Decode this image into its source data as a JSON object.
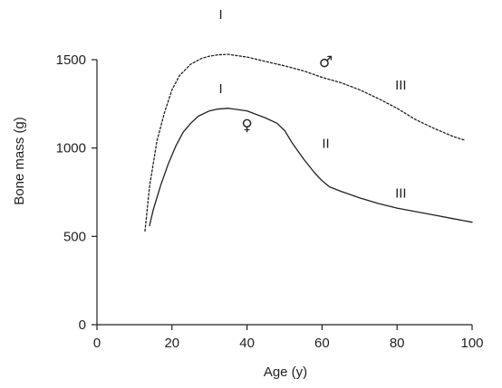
{
  "chart_data": {
    "type": "line",
    "xlabel": "Age (y)",
    "ylabel": "Bone mass (g)",
    "xlim": [
      0,
      100
    ],
    "ylim": [
      0,
      1500
    ],
    "xticks": [
      "0",
      "20",
      "40",
      "60",
      "80",
      "100"
    ],
    "yticks": [
      "0",
      "500",
      "1000",
      "1500"
    ],
    "grid": false,
    "series": [
      {
        "name": "♂",
        "style": "dotted",
        "color": "#231f20",
        "x": [
          12.8,
          14,
          16,
          18,
          20,
          22,
          25,
          28,
          30,
          32,
          35,
          40,
          45,
          50,
          55,
          60,
          65,
          70,
          75,
          80,
          85,
          90,
          95,
          98
        ],
        "y": [
          530,
          780,
          1040,
          1200,
          1330,
          1410,
          1475,
          1508,
          1520,
          1527,
          1530,
          1515,
          1490,
          1465,
          1437,
          1400,
          1370,
          1330,
          1280,
          1225,
          1160,
          1110,
          1065,
          1045
        ]
      },
      {
        "name": "♀",
        "style": "solid",
        "color": "#231f20",
        "x": [
          14,
          15,
          17,
          19,
          21,
          23,
          25,
          27,
          30,
          32,
          35,
          40,
          45,
          48,
          50,
          52,
          55,
          58,
          60,
          62,
          65,
          70,
          75,
          80,
          85,
          90,
          95,
          100
        ],
        "y": [
          560,
          650,
          790,
          910,
          1010,
          1090,
          1140,
          1180,
          1210,
          1220,
          1225,
          1210,
          1170,
          1140,
          1100,
          1030,
          940,
          860,
          815,
          780,
          755,
          718,
          686,
          660,
          640,
          620,
          600,
          580
        ]
      }
    ],
    "annotations": [
      {
        "text": "I",
        "x": 33,
        "y": 1730,
        "series": "♂"
      },
      {
        "text": "♂",
        "x": 61,
        "y": 1460,
        "series": "♂"
      },
      {
        "text": "III",
        "x": 81,
        "y": 1330,
        "series": "♂"
      },
      {
        "text": "I",
        "x": 33,
        "y": 1310,
        "series": "♀"
      },
      {
        "text": "♀",
        "x": 40,
        "y": 1100,
        "series": "♀"
      },
      {
        "text": "II",
        "x": 61,
        "y": 1000,
        "series": "♀"
      },
      {
        "text": "III",
        "x": 81,
        "y": 720,
        "series": "♀"
      }
    ]
  }
}
